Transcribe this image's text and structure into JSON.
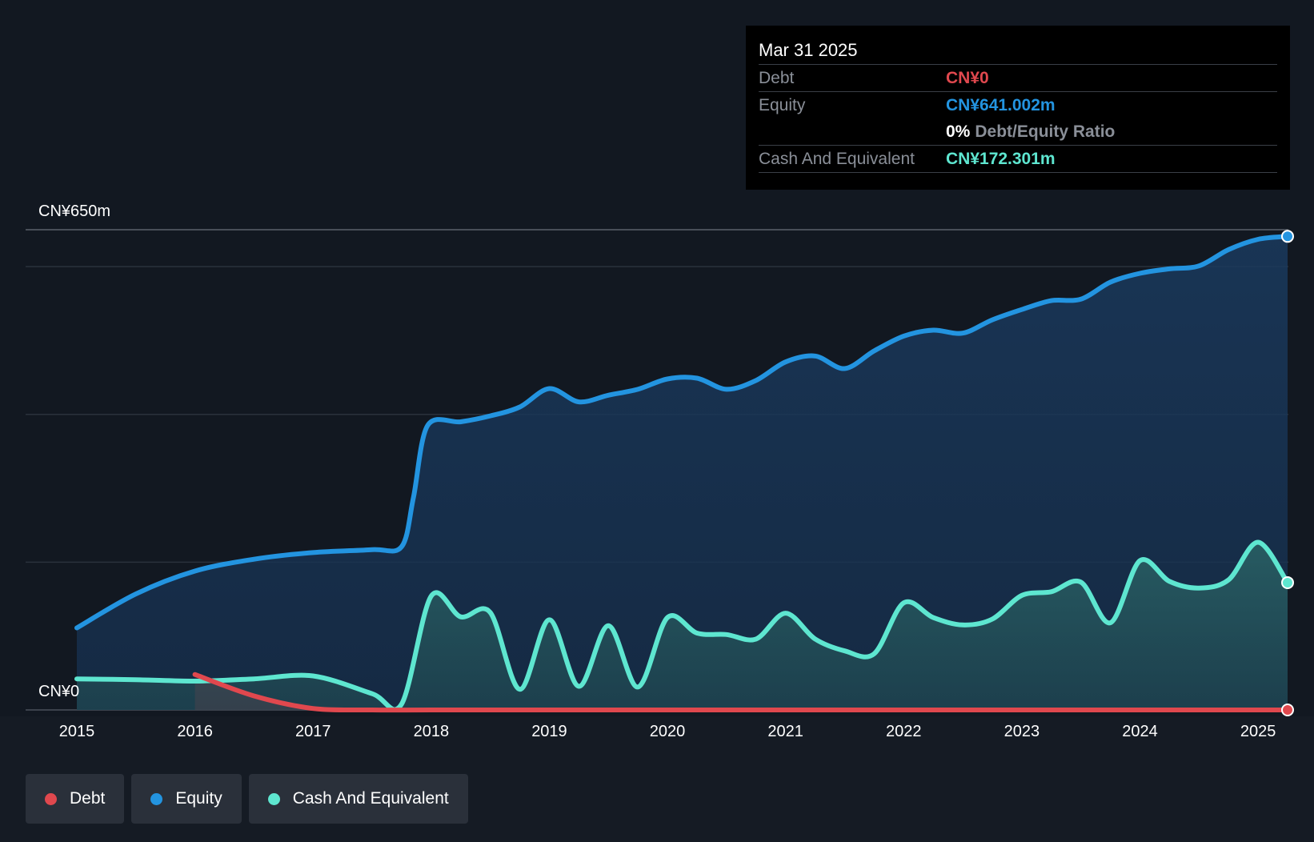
{
  "colors": {
    "background": "#151b24",
    "debt": "#e0484e",
    "equity": "#2394e0",
    "cash": "#5ee6d0",
    "grid": "#2a313c",
    "text": "#ffffff",
    "muted": "#8a8f98"
  },
  "tooltip": {
    "date": "Mar 31 2025",
    "debt_label": "Debt",
    "debt_value": "CN¥0",
    "equity_label": "Equity",
    "equity_value": "CN¥641.002m",
    "ratio_value": "0%",
    "ratio_label": "Debt/Equity Ratio",
    "cash_label": "Cash And Equivalent",
    "cash_value": "CN¥172.301m"
  },
  "legend": {
    "debt": "Debt",
    "equity": "Equity",
    "cash": "Cash And Equivalent"
  },
  "chart_data": {
    "type": "area",
    "title": "",
    "ylabel_top": "CN¥650m",
    "ylabel_bottom": "CN¥0",
    "ylim": [
      0,
      650
    ],
    "xlim": [
      2015,
      2025.25
    ],
    "gridlines": [
      0,
      200,
      400,
      600,
      650
    ],
    "xticks": [
      "2015",
      "2016",
      "2017",
      "2018",
      "2019",
      "2020",
      "2021",
      "2022",
      "2023",
      "2024",
      "2025"
    ],
    "series": [
      {
        "name": "Equity",
        "key": "equity",
        "points": [
          [
            2015,
            111
          ],
          [
            2015.5,
            157
          ],
          [
            2016,
            188
          ],
          [
            2016.5,
            204
          ],
          [
            2017,
            213
          ],
          [
            2017.5,
            217
          ],
          [
            2017.75,
            221
          ],
          [
            2017.85,
            288
          ],
          [
            2017.97,
            385
          ],
          [
            2018.25,
            390
          ],
          [
            2018.5,
            398
          ],
          [
            2018.75,
            410
          ],
          [
            2019,
            435
          ],
          [
            2019.25,
            417
          ],
          [
            2019.5,
            426
          ],
          [
            2019.75,
            434
          ],
          [
            2020,
            448
          ],
          [
            2020.25,
            449
          ],
          [
            2020.5,
            434
          ],
          [
            2020.75,
            446
          ],
          [
            2021,
            471
          ],
          [
            2021.25,
            479
          ],
          [
            2021.5,
            462
          ],
          [
            2021.75,
            486
          ],
          [
            2022,
            506
          ],
          [
            2022.25,
            514
          ],
          [
            2022.5,
            510
          ],
          [
            2022.75,
            528
          ],
          [
            2023,
            542
          ],
          [
            2023.25,
            554
          ],
          [
            2023.5,
            556
          ],
          [
            2023.75,
            579
          ],
          [
            2024,
            591
          ],
          [
            2024.25,
            597
          ],
          [
            2024.5,
            601
          ],
          [
            2024.75,
            623
          ],
          [
            2025,
            637
          ],
          [
            2025.25,
            641
          ]
        ]
      },
      {
        "name": "Cash And Equivalent",
        "key": "cash",
        "points": [
          [
            2015,
            42
          ],
          [
            2015.5,
            41
          ],
          [
            2016,
            39
          ],
          [
            2016.5,
            42
          ],
          [
            2017,
            46
          ],
          [
            2017.5,
            22
          ],
          [
            2017.75,
            8
          ],
          [
            2018,
            154
          ],
          [
            2018.25,
            126
          ],
          [
            2018.5,
            132
          ],
          [
            2018.75,
            28
          ],
          [
            2019,
            122
          ],
          [
            2019.25,
            32
          ],
          [
            2019.5,
            114
          ],
          [
            2019.75,
            31
          ],
          [
            2020,
            125
          ],
          [
            2020.25,
            104
          ],
          [
            2020.5,
            102
          ],
          [
            2020.75,
            96
          ],
          [
            2021,
            131
          ],
          [
            2021.25,
            96
          ],
          [
            2021.5,
            80
          ],
          [
            2021.75,
            76
          ],
          [
            2022,
            145
          ],
          [
            2022.25,
            125
          ],
          [
            2022.5,
            115
          ],
          [
            2022.75,
            123
          ],
          [
            2023,
            155
          ],
          [
            2023.25,
            160
          ],
          [
            2023.5,
            173
          ],
          [
            2023.75,
            118
          ],
          [
            2024,
            202
          ],
          [
            2024.25,
            174
          ],
          [
            2024.5,
            165
          ],
          [
            2024.75,
            176
          ],
          [
            2025,
            227
          ],
          [
            2025.25,
            172.301
          ]
        ]
      },
      {
        "name": "Debt",
        "key": "debt",
        "points": [
          [
            2016,
            48
          ],
          [
            2016.5,
            19
          ],
          [
            2017,
            2
          ],
          [
            2017.5,
            0
          ],
          [
            2018,
            0
          ],
          [
            2019,
            0
          ],
          [
            2020,
            0
          ],
          [
            2021,
            0
          ],
          [
            2022,
            0
          ],
          [
            2023,
            0
          ],
          [
            2024,
            0
          ],
          [
            2025,
            0
          ],
          [
            2025.25,
            0
          ]
        ]
      }
    ]
  }
}
